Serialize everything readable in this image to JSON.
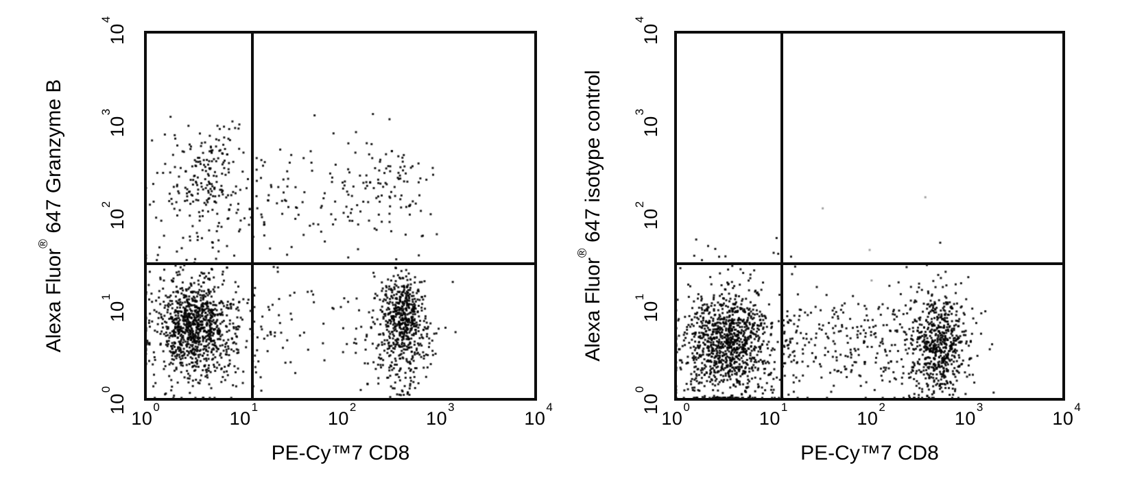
{
  "figure": {
    "background": "#ffffff",
    "frame_color": "#0d0d0d",
    "dot_color": "#000000",
    "faint_dot_color": "#a0a0a0"
  },
  "chart_data": {
    "type": "scatter",
    "variant": "flow-cytometry-quadrant-dot-plot",
    "axes_scale": "log10",
    "x_range": [
      1,
      10000
    ],
    "y_range": [
      1,
      10000
    ],
    "tick_base": "10",
    "tick_exponents": [
      0,
      1,
      2,
      3,
      4
    ],
    "grid": false,
    "legend": false,
    "plots": [
      {
        "name": "granzyme-b-panel",
        "x_label": "PE-Cy™7 CD8",
        "y_label": {
          "pre": "Alexa Fluor",
          "sup": "®",
          "post": " 647 Granzyme B"
        },
        "gates": {
          "x_log": 1.1,
          "y_log": 1.48
        },
        "populations": [
          {
            "name": "cd8neg-granzymeneg-core",
            "n": 820,
            "x": {
              "dist": "gauss",
              "mu": 0.52,
              "sigma": 0.19
            },
            "y": {
              "dist": "gauss",
              "mu": 0.8,
              "sigma": 0.24
            }
          },
          {
            "name": "cd8neg-granzymeneg-halo",
            "n": 240,
            "x": {
              "dist": "gauss",
              "mu": 0.52,
              "sigma": 0.33
            },
            "y": {
              "dist": "gauss",
              "mu": 0.72,
              "sigma": 0.42
            }
          },
          {
            "name": "mid-scatter-low",
            "n": 55,
            "x": {
              "dist": "uniform",
              "min": 1.12,
              "max": 2.35
            },
            "y": {
              "dist": "gauss",
              "mu": 0.72,
              "sigma": 0.27
            }
          },
          {
            "name": "cd8pos-granzymeneg-core",
            "n": 460,
            "x": {
              "dist": "gauss",
              "mu": 2.63,
              "sigma": 0.13
            },
            "y": {
              "dist": "gauss",
              "mu": 0.9,
              "sigma": 0.21
            }
          },
          {
            "name": "cd8pos-granzymeneg-halo",
            "n": 90,
            "x": {
              "dist": "gauss",
              "mu": 2.57,
              "sigma": 0.24
            },
            "y": {
              "dist": "gauss",
              "mu": 0.8,
              "sigma": 0.34
            }
          },
          {
            "name": "cd8pos-bottom-tail",
            "n": 85,
            "x": {
              "dist": "gauss",
              "mu": 2.62,
              "sigma": 0.11
            },
            "y": {
              "dist": "uniform",
              "min": 0.02,
              "max": 0.62
            }
          },
          {
            "name": "granzymepos-cd8neg-core",
            "n": 150,
            "x": {
              "dist": "gauss",
              "mu": 0.66,
              "sigma": 0.17
            },
            "y": {
              "dist": "gauss",
              "mu": 2.42,
              "sigma": 0.23
            }
          },
          {
            "name": "granzymepos-cd8neg-halo",
            "n": 95,
            "x": {
              "dist": "gauss",
              "mu": 0.62,
              "sigma": 0.27
            },
            "y": {
              "dist": "gauss",
              "mu": 2.18,
              "sigma": 0.4
            }
          },
          {
            "name": "granzymepos-cd8pos-band",
            "n": 150,
            "x": {
              "dist": "uniform",
              "min": 1.12,
              "max": 2.95
            },
            "y": {
              "dist": "gauss",
              "mu": 2.22,
              "sigma": 0.3
            }
          },
          {
            "name": "granzymepos-cd8pos-clump",
            "n": 30,
            "x": {
              "dist": "gauss",
              "mu": 2.55,
              "sigma": 0.15
            },
            "y": {
              "dist": "gauss",
              "mu": 2.45,
              "sigma": 0.15
            }
          }
        ],
        "outlier_points_log": [
          [
            0.27,
            3.07
          ],
          [
            0.9,
            3.02
          ],
          [
            2.33,
            3.1
          ],
          [
            2.98,
            1.8
          ]
        ],
        "outlier_color": "#222222"
      },
      {
        "name": "isotype-control-panel",
        "x_label": "PE-Cy™7 CD8",
        "y_label": {
          "pre": "Alexa Fluor",
          "sup": "®",
          "post": " 647 isotype control"
        },
        "gates": {
          "x_log": 1.1,
          "y_log": 1.48
        },
        "populations": [
          {
            "name": "cd8neg-core",
            "n": 880,
            "x": {
              "dist": "gauss",
              "mu": 0.55,
              "sigma": 0.21
            },
            "y": {
              "dist": "gauss",
              "mu": 0.62,
              "sigma": 0.28
            }
          },
          {
            "name": "cd8neg-halo",
            "n": 260,
            "x": {
              "dist": "gauss",
              "mu": 0.55,
              "sigma": 0.34
            },
            "y": {
              "dist": "gauss",
              "mu": 0.6,
              "sigma": 0.42
            }
          },
          {
            "name": "mid-scatter",
            "n": 235,
            "x": {
              "dist": "uniform",
              "min": 1.12,
              "max": 2.45
            },
            "y": {
              "dist": "gauss",
              "mu": 0.6,
              "sigma": 0.3
            }
          },
          {
            "name": "cd8pos-core",
            "n": 470,
            "x": {
              "dist": "gauss",
              "mu": 2.73,
              "sigma": 0.14
            },
            "y": {
              "dist": "gauss",
              "mu": 0.68,
              "sigma": 0.25
            }
          },
          {
            "name": "cd8pos-halo",
            "n": 120,
            "x": {
              "dist": "gauss",
              "mu": 2.66,
              "sigma": 0.27
            },
            "y": {
              "dist": "gauss",
              "mu": 0.62,
              "sigma": 0.34
            }
          },
          {
            "name": "cd8pos-bottom-tail",
            "n": 65,
            "x": {
              "dist": "gauss",
              "mu": 2.72,
              "sigma": 0.12
            },
            "y": {
              "dist": "uniform",
              "min": 0.02,
              "max": 0.5
            }
          }
        ],
        "outlier_points_log": [
          [
            1.52,
            2.08
          ],
          [
            2.57,
            2.2
          ],
          [
            2.02,
            1.3
          ],
          [
            2.0,
            1.63
          ]
        ],
        "outlier_color": "#a0a0a0"
      }
    ]
  }
}
